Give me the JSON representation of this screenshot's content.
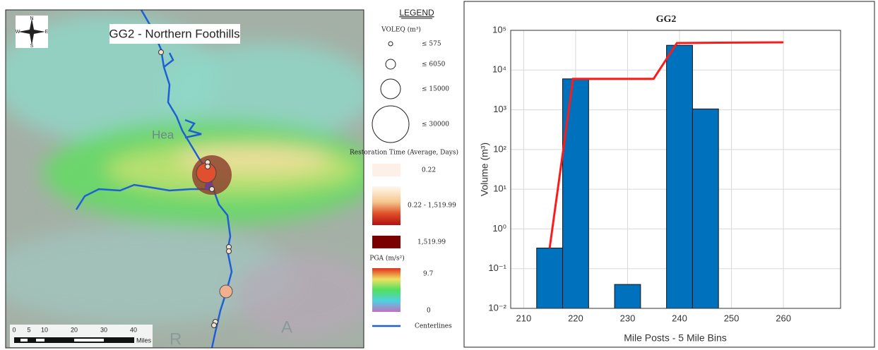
{
  "map": {
    "title": "GG2 - Northern Foothills",
    "compass": [
      "N",
      "E",
      "S",
      "W"
    ],
    "place_labels": [
      "Hea",
      "R",
      "A"
    ],
    "scalebar": {
      "labels": [
        "0",
        "5",
        "10",
        "20",
        "30",
        "40"
      ],
      "unit": "Miles"
    },
    "legend": {
      "title": "LEGEND",
      "voleq_title": "VOLEQ (m³)",
      "voleq_labels": [
        "≤ 575",
        "≤ 6050",
        "≤ 15000",
        "≤ 30000"
      ],
      "restoration_title": "Restoration Time (Average, Days)",
      "restoration_labels": [
        "0.22",
        "0.22 - 1,519.99",
        "1,519.99"
      ],
      "pga_title": "PGA (m/s²)",
      "pga_labels": [
        "9.7",
        "0"
      ],
      "line_label": "Centerlines"
    }
  },
  "chart_data": {
    "type": "histogram",
    "title": "GG2",
    "x_label": "Mile Posts - 5 Mile Bins",
    "y_label": "Volume (m³)",
    "bins": [
      212.5,
      217.5,
      222.5,
      227.5,
      232.5,
      237.5,
      242.5,
      247.5
    ],
    "values": [
      0.33,
      6000,
      null,
      0.04,
      null,
      42000,
      1050
    ],
    "color": "#0072bd",
    "line": {
      "color": "#ff1a1a",
      "x": [
        215,
        219.5,
        235,
        239.5,
        260
      ],
      "values": [
        0.33,
        6000,
        6000,
        48000,
        50000
      ]
    },
    "xlim": [
      207.5,
      271
    ],
    "xticks": [
      210,
      220,
      230,
      240,
      250,
      260
    ],
    "ylim": [
      0.01,
      100000
    ],
    "log_y": true,
    "grid": true,
    "yticks": [
      {
        "value": 0.01,
        "label": "10⁻²"
      },
      {
        "value": 0.1,
        "label": "10⁻¹"
      },
      {
        "value": 1,
        "label": "10⁰"
      },
      {
        "value": 10,
        "label": "10¹"
      },
      {
        "value": 100,
        "label": "10²"
      },
      {
        "value": 1000,
        "label": "10³"
      },
      {
        "value": 10000,
        "label": "10⁴"
      },
      {
        "value": 100000,
        "label": "10⁵"
      }
    ]
  }
}
